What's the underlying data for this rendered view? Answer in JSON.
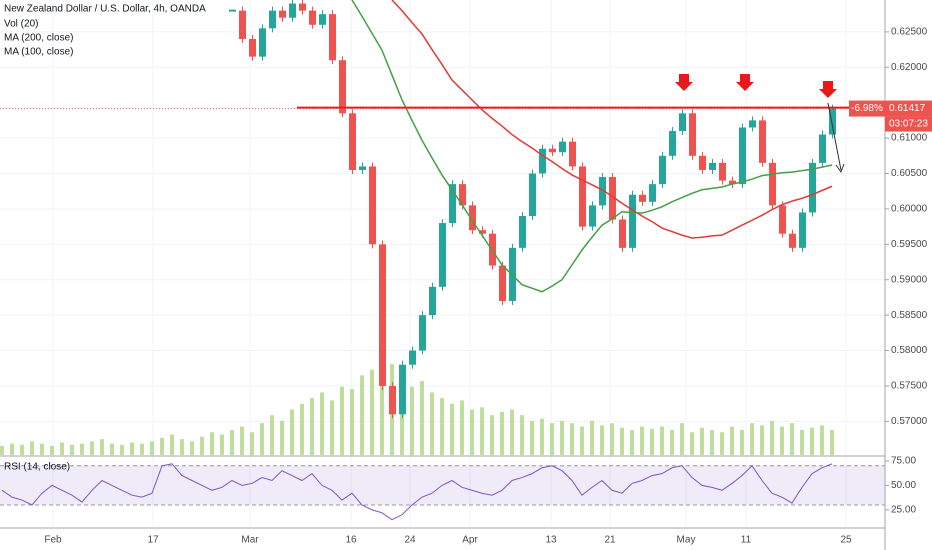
{
  "chart_data": [
    {
      "type": "candlestick",
      "title": "New Zealand Dollar / U.S. Dollar, 4h, OANDA",
      "indicator_labels": [
        "Vol (20)",
        "MA (200, close)",
        "MA (100, close)"
      ],
      "xtick_labels": [
        "Feb",
        "17",
        "Mar",
        "16",
        "24",
        "Apr",
        "13",
        "21",
        "May",
        "11",
        "25"
      ],
      "ylim": [
        0.56525,
        0.6295
      ],
      "yticks": [
        {
          "value": 0.625,
          "label": "0.62500"
        },
        {
          "value": 0.62,
          "label": "0.62000"
        },
        {
          "value": 0.61,
          "label": "0.61000"
        },
        {
          "value": 0.605,
          "label": "0.60500"
        },
        {
          "value": 0.6,
          "label": "0.60000"
        },
        {
          "value": 0.595,
          "label": "0.59500"
        },
        {
          "value": 0.59,
          "label": "0.59000"
        },
        {
          "value": 0.585,
          "label": "0.58500"
        },
        {
          "value": 0.58,
          "label": "0.58000"
        },
        {
          "value": 0.575,
          "label": "0.57500"
        },
        {
          "value": 0.57,
          "label": "0.57000"
        }
      ],
      "y2lim": [
        0,
        400
      ],
      "grid": true,
      "resistance": 0.6143,
      "current_price": {
        "value": 0.61417,
        "label": "0.61417"
      },
      "change_label": "-6.98%",
      "countdown": "03:07:23",
      "series": [
        {
          "name": "Price",
          "up_color": "#26a69a",
          "down_color": "#ef5350",
          "values": [
            null,
            null,
            null,
            null,
            null,
            null,
            null,
            null,
            null,
            null,
            null,
            null,
            null,
            null,
            null,
            null,
            null,
            null,
            null,
            null,
            null,
            null,
            null,
            0.628,
            0.624,
            0.6215,
            0.6255,
            0.628,
            0.627,
            0.629,
            0.628,
            0.626,
            0.6275,
            0.621,
            0.6135,
            0.6055,
            0.606,
            0.595,
            0.575,
            0.571,
            0.578,
            0.58,
            0.585,
            0.589,
            0.598,
            0.6035,
            0.6005,
            0.597,
            0.5965,
            0.592,
            0.587,
            0.5945,
            0.599,
            0.605,
            0.6085,
            0.608,
            0.6095,
            0.606,
            0.5975,
            0.6005,
            0.6045,
            0.5985,
            0.5945,
            0.602,
            0.601,
            0.6035,
            0.6075,
            0.611,
            0.6135,
            0.6075,
            0.6055,
            0.6065,
            0.604,
            0.6035,
            0.6115,
            0.6125,
            0.6065,
            0.6005,
            0.5965,
            0.5945,
            0.5995,
            0.6065,
            0.6105,
            0.61417
          ]
        },
        {
          "name": "MA (200, close)",
          "color": "#e53935",
          "values": [
            null,
            null,
            null,
            null,
            null,
            null,
            null,
            null,
            null,
            null,
            null,
            null,
            null,
            null,
            null,
            null,
            null,
            null,
            null,
            null,
            null,
            null,
            null,
            null,
            null,
            null,
            null,
            null,
            null,
            null,
            null,
            null,
            null,
            null,
            null,
            null,
            null,
            null,
            null,
            0.6295,
            0.628,
            0.6263,
            0.6247,
            0.6225,
            0.6204,
            0.6182,
            0.6168,
            0.6154,
            0.614,
            0.6128,
            0.6117,
            0.6105,
            0.6095,
            0.6086,
            0.6076,
            0.6067,
            0.6057,
            0.6048,
            0.6041,
            0.6034,
            0.6027,
            0.6018,
            0.6008,
            0.5999,
            0.599,
            0.5982,
            0.5973,
            0.5968,
            0.5963,
            0.5959,
            0.596,
            0.5962,
            0.5963,
            0.597,
            0.5977,
            0.5984,
            0.5991,
            0.5999,
            0.6006,
            0.6011,
            0.6015,
            0.602,
            0.6026,
            0.6032
          ]
        },
        {
          "name": "MA (100, close)",
          "color": "#43a047",
          "values": [
            null,
            null,
            null,
            null,
            null,
            null,
            null,
            null,
            null,
            null,
            null,
            null,
            null,
            null,
            null,
            null,
            null,
            null,
            null,
            null,
            null,
            null,
            null,
            null,
            null,
            null,
            null,
            null,
            null,
            null,
            null,
            null,
            null,
            null,
            null,
            0.6295,
            0.6272,
            0.6248,
            0.6224,
            0.6189,
            0.6154,
            0.6125,
            0.6097,
            0.6072,
            0.6048,
            0.6027,
            0.6006,
            0.5984,
            0.5963,
            0.5942,
            0.5921,
            0.5907,
            0.5893,
            0.5888,
            0.5883,
            0.5891,
            0.59,
            0.5921,
            0.5942,
            0.596,
            0.5977,
            0.5986,
            0.5996,
            0.5995,
            0.5994,
            0.5998,
            0.6003,
            0.601,
            0.6016,
            0.6022,
            0.6027,
            0.6029,
            0.6031,
            0.6035,
            0.6038,
            0.6042,
            0.6047,
            0.6049,
            0.6051,
            0.6052,
            0.6054,
            0.6056,
            0.6059,
            0.6062
          ]
        },
        {
          "name": "Vol (20)",
          "axis": "y2",
          "color": "#8bc34a",
          "values": [
            8,
            10,
            9,
            12,
            10,
            8,
            11,
            9,
            10,
            12,
            14,
            10,
            9,
            11,
            10,
            12,
            15,
            18,
            14,
            12,
            16,
            20,
            18,
            22,
            25,
            20,
            28,
            35,
            30,
            40,
            45,
            50,
            55,
            48,
            60,
            58,
            70,
            75,
            90,
            80,
            70,
            60,
            65,
            55,
            50,
            45,
            48,
            40,
            42,
            35,
            38,
            40,
            35,
            30,
            32,
            28,
            30,
            28,
            25,
            30,
            26,
            28,
            24,
            22,
            25,
            23,
            25,
            22,
            28,
            20,
            24,
            22,
            20,
            25,
            22,
            28,
            26,
            30,
            25,
            28,
            22,
            24,
            26,
            22
          ]
        }
      ]
    },
    {
      "type": "line",
      "title": "RSI (14, close)",
      "ylim": [
        7.5,
        79
      ],
      "yticks": [
        {
          "value": 75,
          "label": "75.00"
        },
        {
          "value": 50,
          "label": "50.00"
        },
        {
          "value": 25,
          "label": "25.00"
        }
      ],
      "band": [
        30,
        70
      ],
      "band_color": "#7e57c2",
      "series": [
        {
          "name": "RSI",
          "color": "#7e57c2",
          "values": [
            45,
            38,
            35,
            30,
            42,
            50,
            45,
            40,
            33,
            45,
            55,
            50,
            45,
            40,
            38,
            42,
            70,
            72,
            60,
            55,
            50,
            45,
            48,
            55,
            50,
            52,
            58,
            55,
            65,
            60,
            55,
            62,
            50,
            45,
            35,
            42,
            30,
            25,
            22,
            15,
            20,
            30,
            38,
            42,
            50,
            55,
            48,
            45,
            42,
            40,
            45,
            55,
            58,
            62,
            68,
            70,
            65,
            55,
            40,
            48,
            55,
            45,
            42,
            52,
            55,
            60,
            62,
            68,
            70,
            58,
            50,
            48,
            45,
            52,
            60,
            70,
            55,
            42,
            38,
            32,
            48,
            62,
            68,
            72
          ]
        }
      ]
    }
  ]
}
